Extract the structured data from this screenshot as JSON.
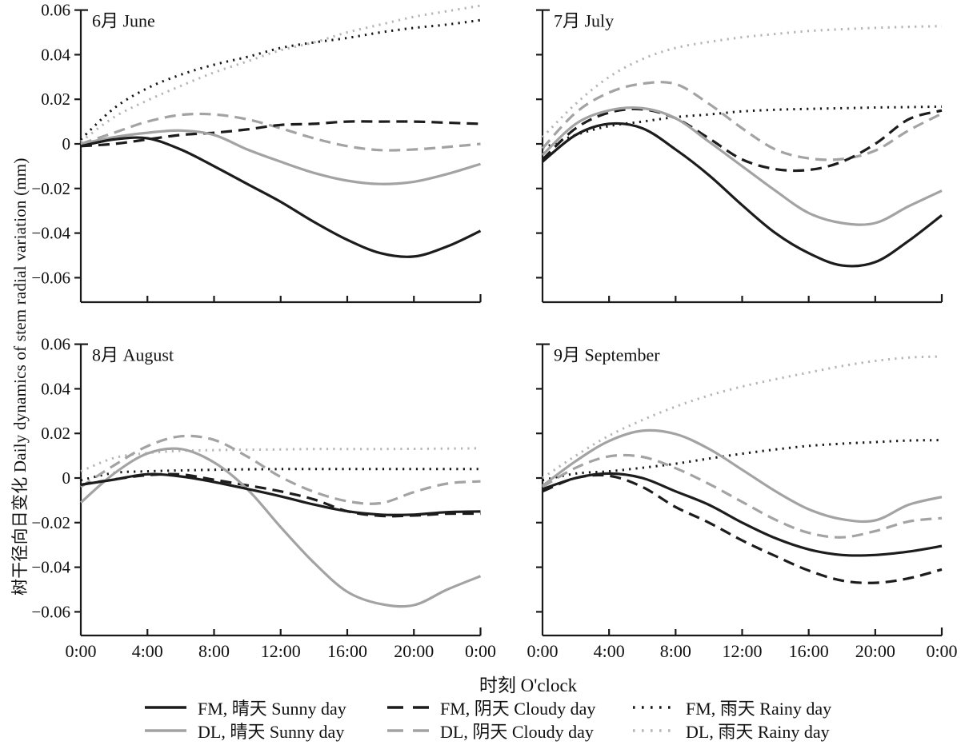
{
  "figure": {
    "y_axis_label": "树干径向日变化 Daily dynamics of stem radial variation (mm)",
    "x_axis_label": "时刻 O'clock",
    "background": "#ffffff"
  },
  "axes": {
    "x_hours": [
      0,
      2,
      4,
      6,
      8,
      10,
      12,
      14,
      16,
      18,
      20,
      22,
      24
    ],
    "x_tick_hours": [
      0,
      4,
      8,
      12,
      16,
      20,
      24
    ],
    "x_tick_labels": [
      "0:00",
      "4:00",
      "8:00",
      "12:00",
      "16:00",
      "20:00",
      "0:00"
    ],
    "y_tick_values": [
      0.06,
      0.04,
      0.02,
      0,
      -0.02,
      -0.04,
      -0.06
    ],
    "y_tick_labels": [
      "0.06",
      "0.04",
      "0.02",
      "0",
      "−0.02",
      "−0.04",
      "−0.06"
    ],
    "ylim": [
      -0.07,
      0.06
    ],
    "grid": false
  },
  "colors": {
    "fm": "#1c1c1c",
    "fm_dotted": "#161616",
    "dl": "#a3a3a3",
    "dl_dotted": "#b5b5b5",
    "axis": "#1a1a1a"
  },
  "chart_data": [
    {
      "type": "line",
      "title": "6月 June",
      "x": [
        0,
        2,
        4,
        6,
        8,
        10,
        12,
        14,
        16,
        18,
        20,
        22,
        24
      ],
      "series": [
        {
          "name": "DL, 雨天 Rainy day",
          "style": "dotted",
          "color_key": "dl_dotted",
          "values": [
            0.001,
            0.012,
            0.0195,
            0.026,
            0.032,
            0.037,
            0.042,
            0.0455,
            0.05,
            0.0535,
            0.057,
            0.0595,
            0.062
          ]
        },
        {
          "name": "FM, 雨天 Rainy day",
          "style": "dotted",
          "color_key": "fm_dotted",
          "values": [
            0.002,
            0.016,
            0.025,
            0.031,
            0.0355,
            0.039,
            0.043,
            0.0455,
            0.0475,
            0.05,
            0.052,
            0.0535,
            0.0555
          ]
        },
        {
          "name": "DL, 阴天 Cloudy day",
          "style": "dashed",
          "color_key": "dl",
          "values": [
            0.0,
            0.005,
            0.01,
            0.013,
            0.0132,
            0.011,
            0.007,
            0.0025,
            -0.001,
            -0.0028,
            -0.0025,
            -0.0014,
            0.0
          ]
        },
        {
          "name": "FM, 阴天 Cloudy day",
          "style": "dashed",
          "color_key": "fm",
          "values": [
            -0.001,
            0.0,
            0.002,
            0.004,
            0.005,
            0.0065,
            0.0085,
            0.009,
            0.01,
            0.01,
            0.01,
            0.0095,
            0.009
          ]
        },
        {
          "name": "DL, 晴天 Sunny day",
          "style": "solid",
          "color_key": "dl",
          "values": [
            0.0,
            0.003,
            0.005,
            0.006,
            0.004,
            -0.0025,
            -0.008,
            -0.013,
            -0.0165,
            -0.018,
            -0.017,
            -0.0135,
            -0.009
          ]
        },
        {
          "name": "FM, 晴天 Sunny day",
          "style": "solid",
          "color_key": "fm",
          "values": [
            -0.001,
            0.002,
            0.0025,
            -0.0025,
            -0.01,
            -0.018,
            -0.026,
            -0.035,
            -0.043,
            -0.049,
            -0.0505,
            -0.046,
            -0.039
          ]
        }
      ]
    },
    {
      "type": "line",
      "title": "7月 July",
      "x": [
        0,
        2,
        4,
        6,
        8,
        10,
        12,
        14,
        16,
        18,
        20,
        22,
        24
      ],
      "series": [
        {
          "name": "DL, 雨天 Rainy day",
          "style": "dotted",
          "color_key": "dl_dotted",
          "values": [
            0.003,
            0.018,
            0.03,
            0.038,
            0.043,
            0.0457,
            0.0478,
            0.0493,
            0.0506,
            0.0514,
            0.052,
            0.0525,
            0.0528
          ]
        },
        {
          "name": "FM, 雨天 Rainy day",
          "style": "dotted",
          "color_key": "fm_dotted",
          "values": [
            -0.002,
            0.004,
            0.008,
            0.01,
            0.012,
            0.0132,
            0.0146,
            0.0153,
            0.0157,
            0.016,
            0.0163,
            0.0165,
            0.0167
          ]
        },
        {
          "name": "DL, 阴天 Cloudy day",
          "style": "dashed",
          "color_key": "dl",
          "values": [
            -0.002,
            0.014,
            0.023,
            0.027,
            0.0268,
            0.018,
            0.007,
            -0.0025,
            -0.0065,
            -0.0068,
            -0.003,
            0.006,
            0.0136
          ]
        },
        {
          "name": "FM, 阴天 Cloudy day",
          "style": "dashed",
          "color_key": "fm",
          "values": [
            -0.007,
            0.007,
            0.014,
            0.0155,
            0.0115,
            0.0025,
            -0.007,
            -0.0113,
            -0.0117,
            -0.008,
            0.0,
            0.011,
            0.015
          ]
        },
        {
          "name": "DL, 晴天 Sunny day",
          "style": "solid",
          "color_key": "dl",
          "values": [
            -0.005,
            0.009,
            0.015,
            0.016,
            0.0115,
            0.001,
            -0.01,
            -0.021,
            -0.031,
            -0.0355,
            -0.0355,
            -0.028,
            -0.021
          ]
        },
        {
          "name": "FM, 晴天 Sunny day",
          "style": "solid",
          "color_key": "fm",
          "values": [
            -0.008,
            0.004,
            0.009,
            0.007,
            -0.0025,
            -0.014,
            -0.0275,
            -0.04,
            -0.049,
            -0.0545,
            -0.053,
            -0.0435,
            -0.032
          ]
        }
      ]
    },
    {
      "type": "line",
      "title": "8月 August",
      "x": [
        0,
        2,
        4,
        6,
        8,
        10,
        12,
        14,
        16,
        18,
        20,
        22,
        24
      ],
      "series": [
        {
          "name": "DL, 雨天 Rainy day",
          "style": "dotted",
          "color_key": "dl_dotted",
          "values": [
            0.003,
            0.009,
            0.0112,
            0.0122,
            0.0125,
            0.0127,
            0.0128,
            0.013,
            0.013,
            0.013,
            0.0131,
            0.0132,
            0.0133
          ]
        },
        {
          "name": "FM, 雨天 Rainy day",
          "style": "dotted",
          "color_key": "fm_dotted",
          "values": [
            -0.001,
            0.0023,
            0.003,
            0.0034,
            0.0037,
            0.0039,
            0.004,
            0.004,
            0.004,
            0.004,
            0.004,
            0.004,
            0.004
          ]
        },
        {
          "name": "DL, 阴天 Cloudy day",
          "style": "dashed",
          "color_key": "dl",
          "values": [
            -0.004,
            0.0057,
            0.0143,
            0.0187,
            0.0171,
            0.0096,
            0.0005,
            -0.0062,
            -0.0104,
            -0.0113,
            -0.0063,
            -0.0025,
            -0.0015
          ]
        },
        {
          "name": "FM, 阴天 Cloudy day",
          "style": "dashed",
          "color_key": "fm",
          "values": [
            -0.003,
            -0.0006,
            0.0013,
            0.0016,
            -0.0008,
            -0.0033,
            -0.006,
            -0.0096,
            -0.0149,
            -0.017,
            -0.0168,
            -0.016,
            -0.016
          ]
        },
        {
          "name": "DL, 晴天 Sunny day",
          "style": "solid",
          "color_key": "dl",
          "values": [
            -0.011,
            0.002,
            0.011,
            0.013,
            0.007,
            -0.005,
            -0.022,
            -0.038,
            -0.051,
            -0.0565,
            -0.057,
            -0.05,
            -0.044
          ]
        },
        {
          "name": "FM, 晴天 Sunny day",
          "style": "solid",
          "color_key": "fm",
          "values": [
            -0.003,
            -0.0007,
            0.0017,
            0.0007,
            -0.0018,
            -0.0049,
            -0.0082,
            -0.0119,
            -0.0149,
            -0.0164,
            -0.0164,
            -0.0153,
            -0.015
          ]
        }
      ]
    },
    {
      "type": "line",
      "title": "9月 September",
      "x": [
        0,
        2,
        4,
        6,
        8,
        10,
        12,
        14,
        16,
        18,
        20,
        22,
        24
      ],
      "series": [
        {
          "name": "DL, 雨天 Rainy day",
          "style": "dotted",
          "color_key": "dl_dotted",
          "values": [
            0.0,
            0.01,
            0.019,
            0.026,
            0.032,
            0.037,
            0.041,
            0.0443,
            0.0473,
            0.0502,
            0.0525,
            0.054,
            0.0545
          ]
        },
        {
          "name": "FM, 雨天 Rainy day",
          "style": "dotted",
          "color_key": "fm_dotted",
          "values": [
            -0.001,
            0.002,
            0.003,
            0.0046,
            0.0064,
            0.0087,
            0.0109,
            0.0128,
            0.0144,
            0.0154,
            0.0161,
            0.0168,
            0.017
          ]
        },
        {
          "name": "DL, 阴天 Cloudy day",
          "style": "dashed",
          "color_key": "dl",
          "values": [
            -0.004,
            0.0046,
            0.0097,
            0.0095,
            0.0044,
            -0.0026,
            -0.0107,
            -0.0187,
            -0.0246,
            -0.0266,
            -0.0238,
            -0.0195,
            -0.018
          ]
        },
        {
          "name": "FM, 阴天 Cloudy day",
          "style": "dashed",
          "color_key": "fm",
          "values": [
            -0.006,
            0.0,
            0.001,
            -0.004,
            -0.013,
            -0.02,
            -0.028,
            -0.035,
            -0.0415,
            -0.046,
            -0.047,
            -0.045,
            -0.041
          ]
        },
        {
          "name": "DL, 晴天 Sunny day",
          "style": "solid",
          "color_key": "dl",
          "values": [
            -0.0035,
            0.0076,
            0.0166,
            0.0212,
            0.0197,
            0.0131,
            0.0037,
            -0.0059,
            -0.014,
            -0.0185,
            -0.019,
            -0.012,
            -0.0085
          ]
        },
        {
          "name": "FM, 晴天 Sunny day",
          "style": "solid",
          "color_key": "fm",
          "values": [
            -0.005,
            0.0,
            0.002,
            0.0,
            -0.006,
            -0.012,
            -0.02,
            -0.027,
            -0.032,
            -0.0345,
            -0.0345,
            -0.033,
            -0.0305
          ]
        }
      ]
    }
  ],
  "legend": {
    "rows": [
      [
        {
          "label": "FM, 晴天 Sunny day",
          "style": "solid",
          "color_key": "fm"
        },
        {
          "label": "FM, 阴天 Cloudy day",
          "style": "dashed",
          "color_key": "fm"
        },
        {
          "label": "FM, 雨天 Rainy day",
          "style": "dotted",
          "color_key": "fm_dotted"
        }
      ],
      [
        {
          "label": "DL, 晴天 Sunny day",
          "style": "solid",
          "color_key": "dl"
        },
        {
          "label": "DL, 阴天 Cloudy day",
          "style": "dashed",
          "color_key": "dl"
        },
        {
          "label": "DL, 雨天 Rainy day",
          "style": "dotted",
          "color_key": "dl_dotted"
        }
      ]
    ]
  }
}
